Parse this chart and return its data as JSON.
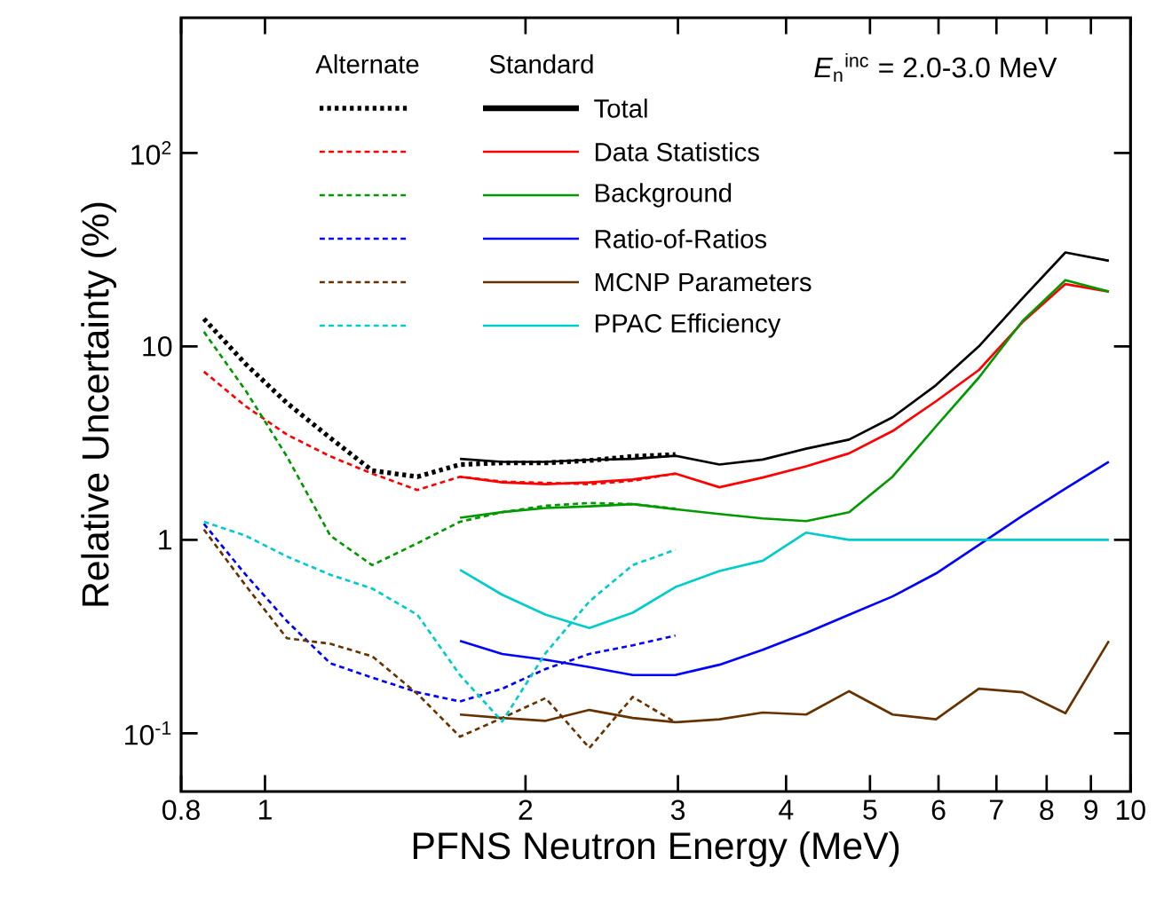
{
  "chart_data": {
    "type": "line",
    "xlabel": "PFNS Neutron Energy (MeV)",
    "ylabel": "Relative Uncertainty (%)",
    "annotations": [
      "Alternate",
      "Standard",
      "*E*$_{n}$$^{inc}$ = 2.0-3.0 MeV"
    ],
    "log": "xy",
    "grid": false,
    "legend": "top",
    "marker": "none",
    "xlim": [
      0.8,
      10
    ],
    "ylim": [
      0.05,
      500
    ],
    "xticks": [
      0.8,
      1,
      2,
      3,
      4,
      5,
      6,
      7,
      8,
      9,
      10
    ],
    "yticks": [
      {
        "value": 0.1,
        "label": "10$^{-1}$"
      },
      1,
      10,
      {
        "value": 100,
        "label": "10$^{2}$"
      }
    ],
    "series": [
      {
        "name": "Total",
        "color": "#000000",
        "line_style": "solid",
        "x": [
          1.68,
          1.88,
          2.11,
          2.37,
          2.66,
          2.98,
          3.35,
          3.76,
          4.22,
          4.73,
          5.31,
          5.96,
          6.68,
          7.5,
          8.41,
          9.44
        ],
        "values": [
          2.62,
          2.53,
          2.53,
          2.59,
          2.62,
          2.72,
          2.45,
          2.6,
          2.96,
          3.3,
          4.3,
          6.3,
          10,
          17.7,
          30.6,
          27.7
        ]
      },
      {
        "name": "Data Statistics",
        "color": "#ff0000",
        "line_style": "solid",
        "x": [
          1.68,
          1.88,
          2.11,
          2.37,
          2.66,
          2.98,
          3.35,
          3.76,
          4.22,
          4.73,
          5.31,
          5.96,
          6.68,
          7.5,
          8.41,
          9.44
        ],
        "values": [
          2.12,
          1.98,
          1.94,
          1.98,
          2.05,
          2.2,
          1.87,
          2.1,
          2.4,
          2.8,
          3.65,
          5.2,
          7.55,
          13.3,
          21,
          19.2
        ]
      },
      {
        "name": "Background",
        "color": "#009900",
        "line_style": "solid",
        "x": [
          1.68,
          1.88,
          2.11,
          2.37,
          2.66,
          2.98,
          3.35,
          3.76,
          4.22,
          4.73,
          5.31,
          5.96,
          6.68,
          7.5,
          8.41,
          9.44
        ],
        "values": [
          1.3,
          1.39,
          1.46,
          1.49,
          1.53,
          1.44,
          1.36,
          1.29,
          1.25,
          1.39,
          2.12,
          3.86,
          6.9,
          13.5,
          22,
          19.2
        ]
      },
      {
        "name": "Ratio-of-Ratios",
        "color": "#0000ff",
        "line_style": "solid",
        "x": [
          1.68,
          1.88,
          2.11,
          2.37,
          2.66,
          2.98,
          3.35,
          3.76,
          4.22,
          4.73,
          5.31,
          5.96,
          6.68,
          7.5,
          8.41,
          9.44
        ],
        "values": [
          0.3,
          0.257,
          0.24,
          0.22,
          0.2,
          0.2,
          0.226,
          0.27,
          0.33,
          0.41,
          0.51,
          0.67,
          0.94,
          1.33,
          1.84,
          2.53
        ]
      },
      {
        "name": "MCNP Parameters",
        "color": "#663300",
        "line_style": "solid",
        "x": [
          1.68,
          1.88,
          2.11,
          2.37,
          2.66,
          2.98,
          3.35,
          3.76,
          4.22,
          4.73,
          5.31,
          5.96,
          6.68,
          7.5,
          8.41,
          9.44
        ],
        "values": [
          0.125,
          0.12,
          0.116,
          0.132,
          0.12,
          0.114,
          0.118,
          0.128,
          0.125,
          0.165,
          0.125,
          0.118,
          0.17,
          0.163,
          0.127,
          0.3
        ]
      },
      {
        "name": "PPAC Efficiency",
        "color": "#00cccc",
        "line_style": "solid",
        "x": [
          1.68,
          1.88,
          2.11,
          2.37,
          2.66,
          2.98,
          3.35,
          3.76,
          4.22,
          4.73,
          5.31,
          5.96,
          6.68,
          7.5,
          8.41,
          9.44
        ],
        "values": [
          0.7,
          0.52,
          0.41,
          0.35,
          0.42,
          0.57,
          0.69,
          0.78,
          1.09,
          1.0,
          1.0,
          1.0,
          1.0,
          1.0,
          1.0,
          1.0
        ]
      },
      {
        "color": "#000000",
        "line_style": "dotted",
        "x": [
          0.85,
          0.95,
          1.06,
          1.19,
          1.33,
          1.5,
          1.68,
          1.88,
          2.11,
          2.37,
          2.66,
          2.98
        ],
        "values": [
          13.9,
          8.1,
          5.1,
          3.36,
          2.28,
          2.12,
          2.45,
          2.5,
          2.5,
          2.57,
          2.7,
          2.76
        ]
      },
      {
        "color": "#ff0000",
        "line_style": "dashed",
        "x": [
          0.85,
          0.95,
          1.06,
          1.19,
          1.33,
          1.5,
          1.68,
          1.88,
          2.11,
          2.37,
          2.66,
          2.98
        ],
        "values": [
          7.4,
          4.9,
          3.5,
          2.7,
          2.2,
          1.81,
          2.12,
          2.0,
          1.97,
          1.94,
          2.02,
          2.2
        ]
      },
      {
        "color": "#009900",
        "line_style": "dashed",
        "x": [
          0.85,
          0.95,
          1.06,
          1.19,
          1.33,
          1.5,
          1.68,
          1.88,
          2.11,
          2.37,
          2.66,
          2.98
        ],
        "values": [
          11.9,
          5.9,
          2.7,
          1.05,
          0.74,
          0.96,
          1.24,
          1.39,
          1.5,
          1.55,
          1.53,
          1.45
        ]
      },
      {
        "color": "#0000ff",
        "line_style": "dashed",
        "x": [
          0.85,
          0.95,
          1.06,
          1.19,
          1.33,
          1.5,
          1.68,
          1.88,
          2.11,
          2.37,
          2.66,
          2.98
        ],
        "values": [
          1.21,
          0.66,
          0.38,
          0.23,
          0.194,
          0.163,
          0.146,
          0.17,
          0.215,
          0.257,
          0.285,
          0.32
        ]
      },
      {
        "color": "#663300",
        "line_style": "dashed",
        "x": [
          0.85,
          0.95,
          1.06,
          1.19,
          1.33,
          1.5,
          1.68,
          1.88,
          2.11,
          2.37,
          2.66,
          2.98
        ],
        "values": [
          1.13,
          0.58,
          0.31,
          0.29,
          0.25,
          0.16,
          0.096,
          0.12,
          0.152,
          0.084,
          0.154,
          0.114
        ]
      },
      {
        "color": "#00cccc",
        "line_style": "dashed",
        "x": [
          0.85,
          0.95,
          1.06,
          1.19,
          1.33,
          1.5,
          1.68,
          1.88,
          2.11,
          2.37,
          2.66,
          2.98
        ],
        "values": [
          1.24,
          1.05,
          0.82,
          0.66,
          0.56,
          0.41,
          0.2,
          0.115,
          0.26,
          0.48,
          0.74,
          0.89
        ]
      }
    ]
  }
}
